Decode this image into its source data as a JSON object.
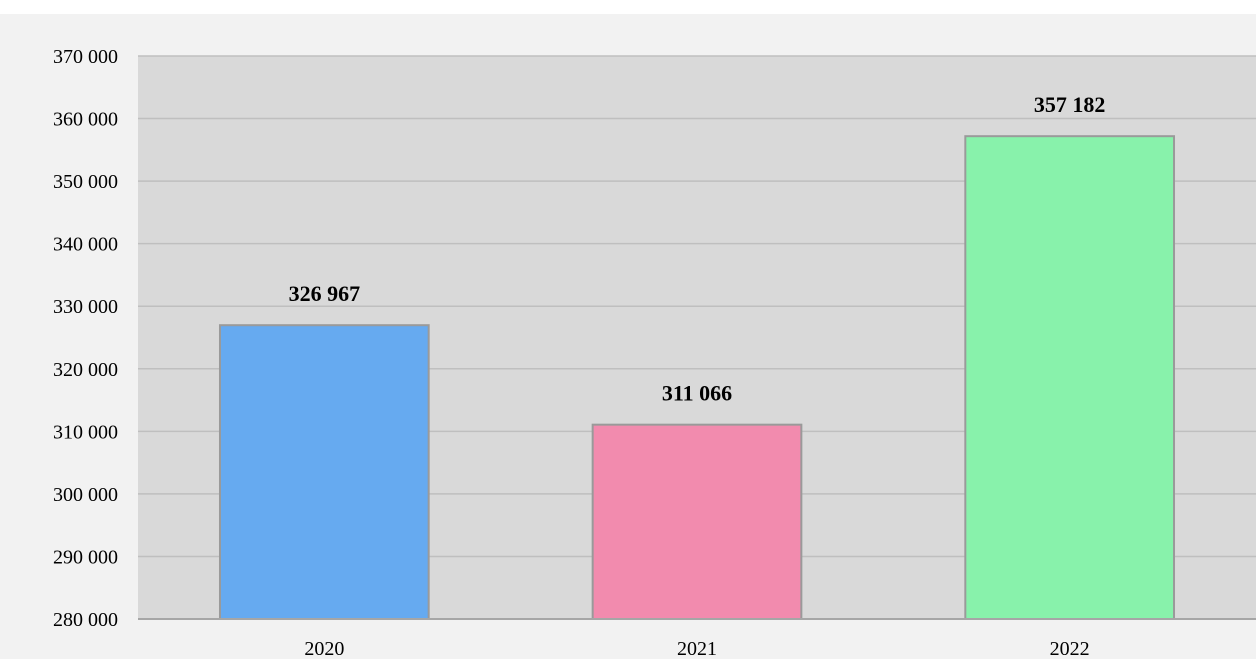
{
  "chart_data": {
    "type": "bar",
    "title": "",
    "xlabel": "",
    "ylabel": "",
    "categories": [
      "2020",
      "2021",
      "2022"
    ],
    "values": [
      326967,
      311066,
      357182
    ],
    "data_labels": [
      "326 967",
      "311 066",
      "357 182"
    ],
    "bar_colors": [
      "#66aaf0",
      "#f28bae",
      "#88f2ab"
    ],
    "ylim": [
      280000,
      370000
    ],
    "y_ticks": [
      280000,
      290000,
      300000,
      310000,
      320000,
      330000,
      340000,
      350000,
      360000,
      370000
    ],
    "y_tick_labels": [
      "280 000",
      "290 000",
      "300 000",
      "310 000",
      "320 000",
      "330 000",
      "340 000",
      "350 000",
      "360 000",
      "370 000"
    ],
    "grid": true,
    "legend": "none",
    "colors": {
      "page_background": "#f2f2f2",
      "plot_background": "#d9d9d9",
      "gridline": "#bfbfbf",
      "bar_outline": "#9a9a9a",
      "axis_line": "#a6a6a6"
    }
  }
}
